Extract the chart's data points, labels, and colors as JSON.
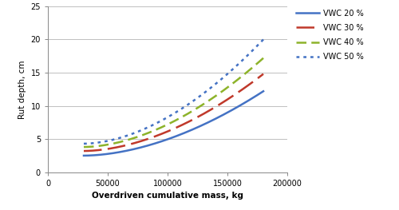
{
  "x_start": 30000,
  "x_end": 180000,
  "xlim": [
    0,
    200000
  ],
  "ylim": [
    0,
    25
  ],
  "xlabel": "Overdriven cumulative mass, kg",
  "ylabel": "Rut depth, cm",
  "yticks": [
    0,
    5,
    10,
    15,
    20,
    25
  ],
  "xticks": [
    0,
    50000,
    100000,
    150000,
    200000
  ],
  "series": [
    {
      "label": "VWC 20 %",
      "color": "#4472C4",
      "linestyle": "solid",
      "linewidth": 1.8,
      "y_start": 2.5,
      "y_end": 12.2,
      "power": 1.8
    },
    {
      "label": "VWC 30 %",
      "color": "#C0392B",
      "linestyle": "longdash",
      "linewidth": 1.8,
      "y_start": 3.2,
      "y_end": 14.8,
      "power": 1.8
    },
    {
      "label": "VWC 40 %",
      "color": "#8DB32A",
      "linestyle": "shortdash",
      "linewidth": 1.8,
      "y_start": 3.8,
      "y_end": 17.2,
      "power": 1.8
    },
    {
      "label": "VWC 50 %",
      "color": "#4472C4",
      "linestyle": "dotted",
      "linewidth": 1.8,
      "y_start": 4.3,
      "y_end": 20.0,
      "power": 1.8
    }
  ],
  "background_color": "#ffffff",
  "grid_color": "#c0c0c0",
  "legend_fontsize": 7,
  "axis_label_fontsize": 7.5,
  "tick_fontsize": 7
}
